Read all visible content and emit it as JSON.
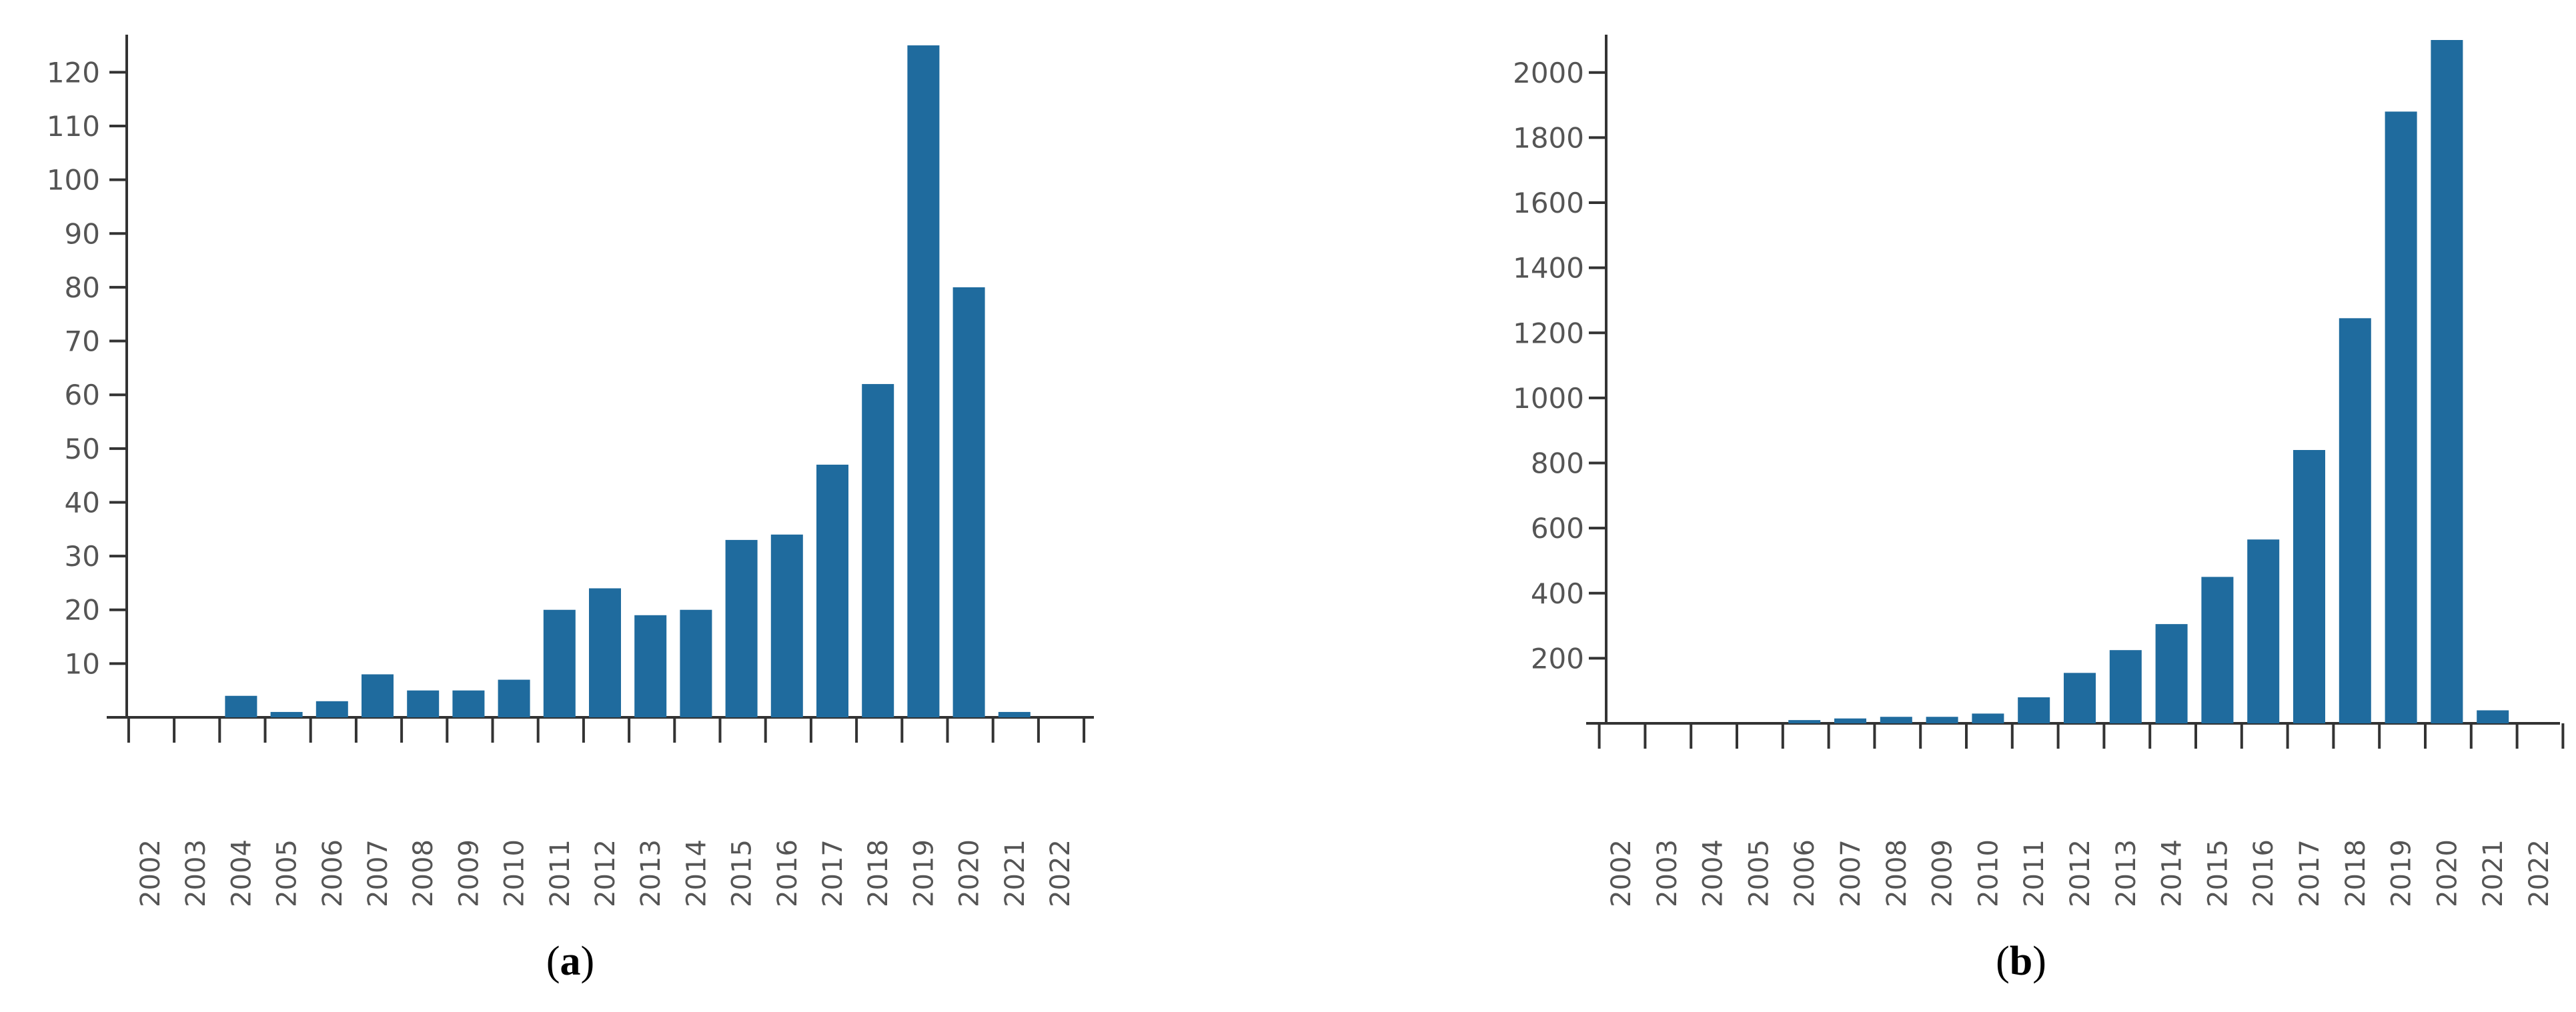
{
  "colors": {
    "bar": "#1f6b9e",
    "axis": "#333333",
    "text": "#555555"
  },
  "chart_data": [
    {
      "type": "bar",
      "caption_open": "(",
      "caption_letter": "a",
      "caption_close": ")",
      "categories": [
        "2002",
        "2003",
        "2004",
        "2005",
        "2006",
        "2007",
        "2008",
        "2009",
        "2010",
        "2011",
        "2012",
        "2013",
        "2014",
        "2015",
        "2016",
        "2017",
        "2018",
        "2019",
        "2020",
        "2021",
        "2022"
      ],
      "values": [
        0,
        0,
        4,
        1,
        3,
        8,
        5,
        5,
        7,
        20,
        24,
        19,
        20,
        33,
        34,
        47,
        62,
        125,
        80,
        1,
        0
      ],
      "yticks": [
        10,
        20,
        30,
        40,
        50,
        60,
        70,
        80,
        90,
        100,
        110,
        120
      ],
      "ylim": [
        0,
        126
      ],
      "title": "",
      "xlabel": "",
      "ylabel": "",
      "grid": false
    },
    {
      "type": "bar",
      "caption_open": "(",
      "caption_letter": "b",
      "caption_close": ")",
      "categories": [
        "2002",
        "2003",
        "2004",
        "2005",
        "2006",
        "2007",
        "2008",
        "2009",
        "2010",
        "2011",
        "2012",
        "2013",
        "2014",
        "2015",
        "2016",
        "2017",
        "2018",
        "2019",
        "2020",
        "2021",
        "2022"
      ],
      "values": [
        0,
        0,
        0,
        0,
        10,
        15,
        20,
        20,
        30,
        80,
        155,
        225,
        305,
        450,
        565,
        840,
        1245,
        1880,
        2100,
        40,
        0
      ],
      "yticks": [
        200,
        400,
        600,
        800,
        1000,
        1200,
        1400,
        1600,
        1800,
        2000
      ],
      "ylim": [
        0,
        2100
      ],
      "title": "",
      "xlabel": "",
      "ylabel": "",
      "grid": false
    }
  ]
}
